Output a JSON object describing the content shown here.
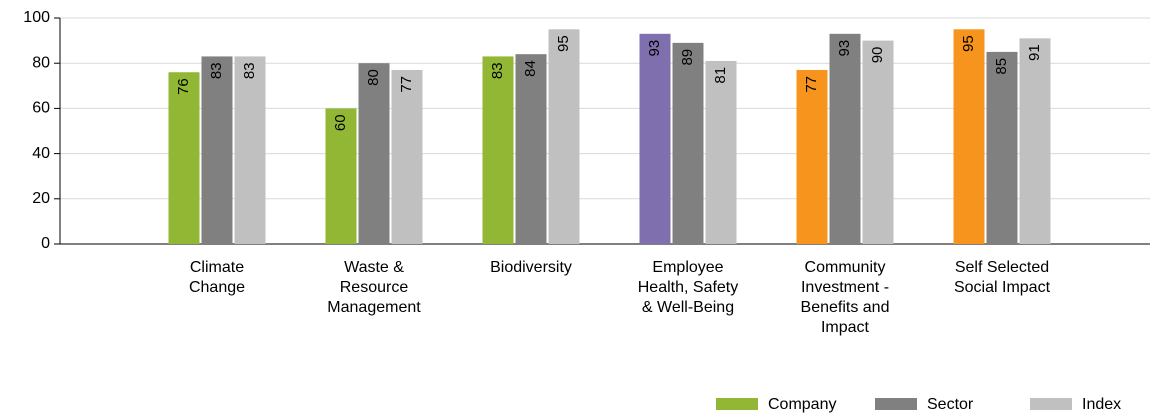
{
  "chart_data": {
    "type": "bar",
    "categories": [
      [
        "Climate",
        "Change"
      ],
      [
        "Waste &",
        "Resource",
        "Management"
      ],
      [
        "Biodiversity"
      ],
      [
        "Employee",
        "Health, Safety",
        "& Well-Being"
      ],
      [
        "Community",
        "Investment -",
        "Benefits and",
        "Impact"
      ],
      [
        "Self Selected",
        "Social Impact"
      ]
    ],
    "series": [
      {
        "name": "Company",
        "color": "#92b735",
        "colors": [
          "#92b735",
          "#92b735",
          "#92b735",
          "#7f6fae",
          "#f7941d",
          "#f7941d"
        ],
        "values": [
          76,
          60,
          83,
          93,
          77,
          95
        ]
      },
      {
        "name": "Sector",
        "color": "#808080",
        "values": [
          83,
          80,
          84,
          89,
          93,
          85
        ]
      },
      {
        "name": "Index",
        "color": "#c0c0c0",
        "values": [
          83,
          77,
          95,
          81,
          90,
          91
        ]
      }
    ],
    "ylim": [
      0,
      100
    ],
    "yticks": [
      0,
      20,
      40,
      60,
      80,
      100
    ],
    "grid": true,
    "legend": "bottom-right"
  }
}
